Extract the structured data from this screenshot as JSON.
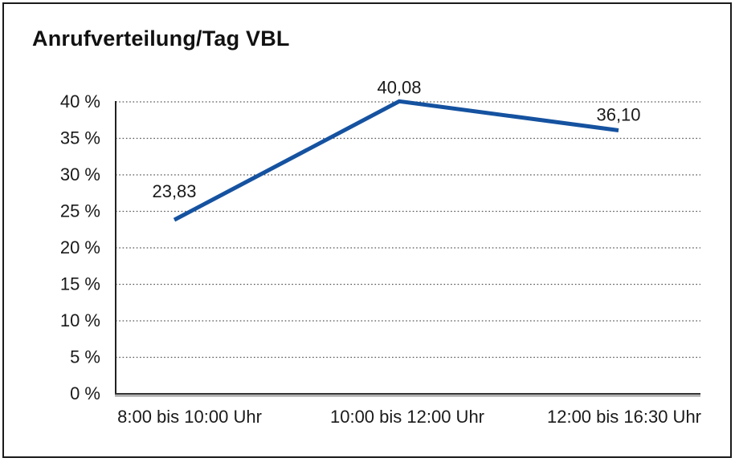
{
  "window": {
    "background_color": "#ffffff",
    "border_color": "#1a1a1a"
  },
  "chart_data": {
    "type": "line",
    "title": "Anrufverteilung/Tag VBL",
    "categories": [
      "8:00 bis 10:00 Uhr",
      "10:00 bis 12:00 Uhr",
      "12:00 bis 16:30 Uhr"
    ],
    "series": [
      {
        "values": [
          23.83,
          40.08,
          36.1
        ],
        "point_labels": [
          "23,83",
          "40,08",
          "36,10"
        ],
        "color": "#1552a0"
      }
    ],
    "xlabel": "",
    "ylabel": "",
    "ylim": [
      0,
      40
    ],
    "y_ticks": [
      {
        "value": 0,
        "label": "0 %"
      },
      {
        "value": 5,
        "label": "5 %"
      },
      {
        "value": 10,
        "label": "10 %"
      },
      {
        "value": 15,
        "label": "15 %"
      },
      {
        "value": 20,
        "label": "20 %"
      },
      {
        "value": 25,
        "label": "25 %"
      },
      {
        "value": 30,
        "label": "30 %"
      },
      {
        "value": 35,
        "label": "35 %"
      },
      {
        "value": 40,
        "label": "40 %"
      }
    ],
    "grid": "horizontal-dotted",
    "grid_color": "#555555",
    "text_color": "#1a1a1a",
    "legend_position": "none"
  }
}
